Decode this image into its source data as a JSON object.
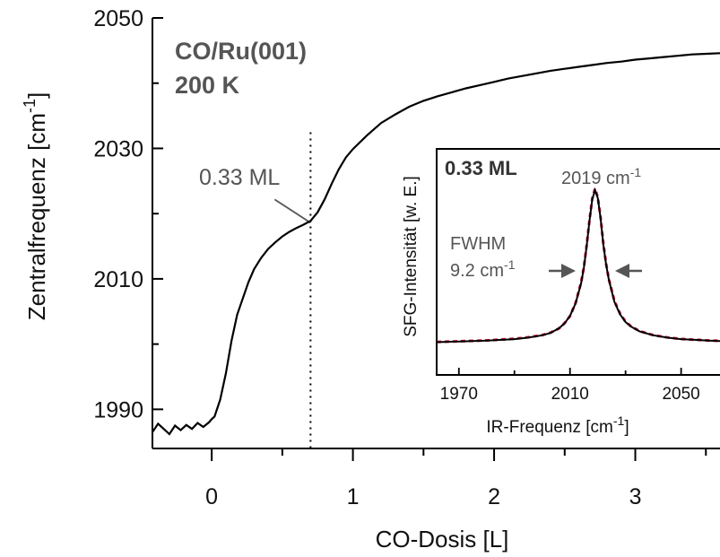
{
  "chart_data": [
    {
      "type": "line",
      "sample": "CO/Ru(001)",
      "temperature": "200 K",
      "ylabel": "Zentralfrequenz [cm",
      "ylabel_sup": "-1",
      "ylabel_end": "]",
      "xlabel": "CO-Dosis [L]",
      "xlim": [
        -0.42,
        3.6
      ],
      "ylim": [
        1984,
        2050
      ],
      "xticks": [
        0,
        1,
        2,
        3
      ],
      "yticks": [
        1990,
        2010,
        2030,
        2050
      ],
      "grid": false,
      "marker": {
        "x": 0.7,
        "y": 2018.6,
        "label": "0.33 ML"
      },
      "series": [
        {
          "color": "#000000",
          "x": [
            -0.42,
            -0.38,
            -0.34,
            -0.3,
            -0.26,
            -0.22,
            -0.18,
            -0.14,
            -0.1,
            -0.06,
            -0.02,
            0.0,
            0.02,
            0.06,
            0.1,
            0.14,
            0.18,
            0.22,
            0.26,
            0.3,
            0.35,
            0.4,
            0.45,
            0.5,
            0.55,
            0.6,
            0.65,
            0.7,
            0.75,
            0.8,
            0.85,
            0.9,
            0.95,
            1.0,
            1.1,
            1.2,
            1.3,
            1.4,
            1.5,
            1.6,
            1.7,
            1.8,
            1.9,
            2.0,
            2.1,
            2.2,
            2.3,
            2.4,
            2.5,
            2.6,
            2.7,
            2.8,
            2.9,
            3.0,
            3.1,
            3.2,
            3.3,
            3.4,
            3.5,
            3.6
          ],
          "y": [
            1986.5,
            1987.8,
            1987.0,
            1986.2,
            1987.5,
            1986.8,
            1987.6,
            1987.0,
            1987.9,
            1987.3,
            1988.0,
            1988.5,
            1988.9,
            1991.5,
            1995.5,
            2000.5,
            2004.5,
            2007.0,
            2009.5,
            2011.5,
            2013.2,
            2014.6,
            2015.6,
            2016.5,
            2017.2,
            2017.8,
            2018.3,
            2018.9,
            2020.2,
            2022.2,
            2024.6,
            2026.8,
            2028.6,
            2029.9,
            2032.0,
            2033.9,
            2035.2,
            2036.4,
            2037.3,
            2038.0,
            2038.6,
            2039.2,
            2039.7,
            2040.2,
            2040.7,
            2041.1,
            2041.5,
            2041.9,
            2042.2,
            2042.5,
            2042.8,
            2043.1,
            2043.3,
            2043.6,
            2043.8,
            2044.0,
            2044.2,
            2044.4,
            2044.5,
            2044.6
          ]
        }
      ]
    },
    {
      "type": "line",
      "title": "0.33 ML",
      "peak_label": "2019 cm",
      "peak_sup": "-1",
      "fwhm_label": "FWHM",
      "fwhm_value": "9.2 cm",
      "fwhm_sup": "-1",
      "ylabel": "SFG-Intensität [w. E.]",
      "xlabel": "IR-Frequenz [cm",
      "xlabel_sup": "-1",
      "xlabel_end": "]",
      "xlim": [
        1962,
        2064
      ],
      "xticks": [
        1970,
        2010,
        2050
      ],
      "peak_position": 2019,
      "fwhm": 9.2,
      "series": [
        {
          "style": "solid",
          "color": "#000000",
          "x": [
            1962,
            1970,
            1980,
            1990,
            1995,
            2000,
            2003,
            2006,
            2008,
            2010,
            2012,
            2014,
            2015,
            2016,
            2017,
            2018,
            2019,
            2020,
            2021,
            2022,
            2023,
            2024,
            2026,
            2028,
            2030,
            2032,
            2035,
            2040,
            2045,
            2050,
            2055,
            2060,
            2064
          ],
          "y": [
            0.02,
            0.025,
            0.03,
            0.04,
            0.05,
            0.065,
            0.08,
            0.11,
            0.14,
            0.19,
            0.27,
            0.4,
            0.5,
            0.64,
            0.8,
            0.94,
            1.0,
            0.95,
            0.82,
            0.65,
            0.52,
            0.42,
            0.28,
            0.2,
            0.15,
            0.12,
            0.09,
            0.065,
            0.05,
            0.04,
            0.035,
            0.03,
            0.028
          ]
        },
        {
          "style": "dashed",
          "color": "#d0173f",
          "x": [
            1962,
            1970,
            1980,
            1990,
            1995,
            2000,
            2003,
            2006,
            2008,
            2010,
            2012,
            2014,
            2015,
            2016,
            2017,
            2018,
            2019,
            2020,
            2021,
            2022,
            2023,
            2024,
            2026,
            2028,
            2030,
            2032,
            2035,
            2040,
            2045,
            2050,
            2055,
            2060,
            2064
          ],
          "y": [
            0.022,
            0.026,
            0.032,
            0.042,
            0.052,
            0.066,
            0.082,
            0.108,
            0.142,
            0.188,
            0.272,
            0.405,
            0.505,
            0.645,
            0.805,
            0.945,
            1.01,
            0.955,
            0.825,
            0.655,
            0.525,
            0.425,
            0.285,
            0.205,
            0.152,
            0.122,
            0.092,
            0.066,
            0.051,
            0.041,
            0.036,
            0.031,
            0.029
          ]
        }
      ]
    }
  ]
}
